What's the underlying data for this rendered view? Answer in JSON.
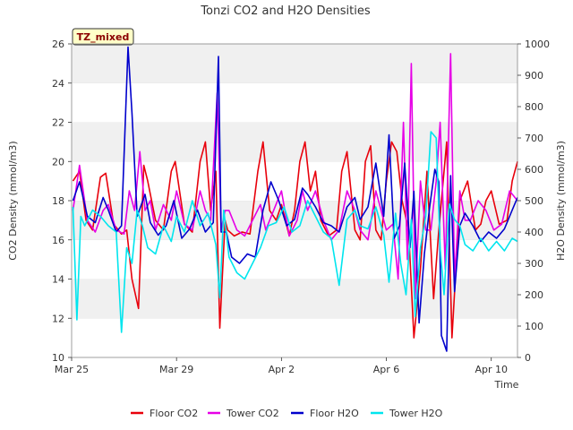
{
  "chart_data": {
    "type": "line",
    "title": "Tonzi CO2 and H2O Densities",
    "badge": "TZ_mixed",
    "xlabel": "Time",
    "ylabel_left": "CO2 Density (mmol/m3)",
    "ylabel_right": "H2O Density (mmol/m3)",
    "x_unit": "days since Mar 25",
    "xlim": [
      0,
      17
    ],
    "ylim_left": [
      10,
      26
    ],
    "ylim_right": [
      0,
      1000
    ],
    "yticks_left": [
      10,
      12,
      14,
      16,
      18,
      20,
      22,
      24,
      26
    ],
    "yticks_right": [
      0,
      100,
      200,
      300,
      400,
      500,
      600,
      700,
      800,
      900,
      1000
    ],
    "xticks": [
      {
        "x": 0,
        "label": "Mar 25"
      },
      {
        "x": 4,
        "label": "Mar 29"
      },
      {
        "x": 8,
        "label": "Apr 2"
      },
      {
        "x": 12,
        "label": "Apr 6"
      },
      {
        "x": 16,
        "label": "Apr 10"
      }
    ],
    "grid": "alternating horizontal bands",
    "legend_position": "bottom",
    "series": [
      {
        "name": "Floor CO2",
        "color": "#e8000b",
        "axis": "left",
        "x": [
          0.05,
          0.3,
          0.55,
          0.8,
          1.1,
          1.3,
          1.6,
          1.9,
          2.1,
          2.3,
          2.55,
          2.75,
          2.9,
          3.2,
          3.5,
          3.8,
          3.95,
          4.3,
          4.6,
          4.9,
          5.1,
          5.3,
          5.5,
          5.65,
          5.85,
          5.95,
          6.2,
          6.5,
          6.8,
          7.1,
          7.3,
          7.55,
          7.8,
          8.0,
          8.3,
          8.5,
          8.7,
          8.9,
          9.1,
          9.3,
          9.5,
          9.8,
          10.1,
          10.3,
          10.5,
          10.8,
          11.0,
          11.2,
          11.4,
          11.6,
          11.8,
          12.0,
          12.2,
          12.4,
          12.6,
          12.85,
          13.05,
          13.3,
          13.55,
          13.8,
          14.0,
          14.3,
          14.5,
          14.8,
          15.1,
          15.4,
          15.6,
          15.8,
          16.0,
          16.3,
          16.6,
          16.8,
          17.0
        ],
        "y": [
          19.0,
          19.5,
          17.0,
          16.5,
          19.2,
          19.4,
          16.8,
          16.3,
          16.5,
          14.0,
          12.5,
          19.8,
          19.0,
          17.0,
          16.5,
          19.5,
          20.0,
          16.8,
          16.4,
          20.0,
          21.0,
          17.5,
          19.5,
          11.5,
          17.0,
          16.5,
          16.2,
          16.4,
          16.3,
          19.5,
          21.0,
          17.5,
          17.0,
          17.8,
          16.2,
          17.5,
          20.0,
          21.0,
          18.5,
          19.5,
          17.0,
          16.2,
          16.5,
          19.5,
          20.5,
          16.5,
          16.0,
          20.0,
          20.8,
          16.5,
          16.0,
          19.0,
          21.0,
          20.5,
          18.0,
          16.5,
          11.0,
          14.5,
          19.5,
          13.0,
          16.5,
          21.0,
          11.0,
          18.0,
          19.0,
          16.5,
          16.8,
          18.0,
          18.5,
          16.8,
          17.0,
          19.0,
          20.0
        ]
      },
      {
        "name": "Tower CO2",
        "color": "#e600e6",
        "axis": "left",
        "x": [
          0.05,
          0.3,
          0.6,
          0.9,
          1.2,
          1.4,
          1.7,
          2.0,
          2.2,
          2.4,
          2.6,
          2.8,
          3.0,
          3.2,
          3.5,
          3.8,
          4.0,
          4.3,
          4.6,
          4.9,
          5.1,
          5.3,
          5.55,
          5.7,
          5.85,
          6.0,
          6.3,
          6.6,
          6.9,
          7.2,
          7.4,
          7.7,
          8.0,
          8.3,
          8.6,
          8.8,
          9.0,
          9.3,
          9.6,
          9.9,
          10.2,
          10.5,
          10.8,
          11.0,
          11.3,
          11.6,
          11.8,
          12.0,
          12.25,
          12.45,
          12.65,
          12.8,
          12.95,
          13.1,
          13.3,
          13.5,
          13.7,
          13.9,
          14.05,
          14.25,
          14.45,
          14.6,
          14.8,
          15.0,
          15.2,
          15.5,
          15.8,
          16.1,
          16.4,
          16.7,
          17.0
        ],
        "y": [
          17.5,
          19.8,
          17.0,
          16.4,
          17.5,
          17.8,
          16.5,
          16.3,
          18.5,
          17.5,
          20.5,
          17.5,
          18.0,
          16.5,
          17.8,
          17.0,
          18.5,
          16.8,
          16.5,
          18.5,
          17.5,
          17.0,
          23.5,
          16.5,
          17.5,
          17.5,
          16.5,
          16.2,
          17.0,
          17.8,
          16.5,
          17.5,
          18.5,
          16.2,
          17.0,
          18.5,
          17.5,
          18.5,
          17.0,
          16.0,
          16.5,
          18.5,
          17.5,
          16.5,
          16.0,
          18.5,
          17.5,
          16.5,
          16.8,
          14.0,
          22.0,
          15.0,
          25.0,
          13.0,
          19.0,
          16.5,
          16.5,
          19.0,
          22.0,
          14.5,
          25.5,
          14.0,
          18.5,
          17.0,
          17.0,
          18.0,
          17.5,
          16.5,
          16.8,
          18.5,
          18.0
        ]
      },
      {
        "name": "Floor H2O",
        "color": "#0000cc",
        "axis": "right",
        "x": [
          0.05,
          0.3,
          0.6,
          0.9,
          1.2,
          1.4,
          1.7,
          1.9,
          2.15,
          2.3,
          2.5,
          2.8,
          3.0,
          3.3,
          3.6,
          3.9,
          4.2,
          4.5,
          4.8,
          5.1,
          5.4,
          5.6,
          5.7,
          5.9,
          6.1,
          6.4,
          6.7,
          7.0,
          7.3,
          7.6,
          7.9,
          8.2,
          8.5,
          8.8,
          9.0,
          9.3,
          9.6,
          9.9,
          10.2,
          10.5,
          10.8,
          11.0,
          11.3,
          11.6,
          11.9,
          12.1,
          12.3,
          12.5,
          12.7,
          12.9,
          13.05,
          13.25,
          13.45,
          13.65,
          13.85,
          14.0,
          14.1,
          14.3,
          14.45,
          14.6,
          14.8,
          15.0,
          15.3,
          15.6,
          15.9,
          16.2,
          16.5,
          16.8,
          17.0
        ],
        "y": [
          500,
          560,
          450,
          430,
          510,
          470,
          400,
          420,
          990,
          780,
          450,
          520,
          430,
          390,
          420,
          500,
          380,
          410,
          470,
          400,
          430,
          960,
          400,
          400,
          320,
          300,
          330,
          320,
          470,
          560,
          500,
          420,
          440,
          540,
          520,
          480,
          430,
          420,
          400,
          480,
          510,
          440,
          480,
          620,
          450,
          710,
          380,
          420,
          620,
          350,
          530,
          110,
          330,
          480,
          600,
          560,
          70,
          20,
          580,
          210,
          420,
          460,
          420,
          370,
          400,
          380,
          410,
          470,
          510
        ]
      },
      {
        "name": "Tower H2O",
        "color": "#00e5ee",
        "axis": "right",
        "x": [
          0.05,
          0.2,
          0.35,
          0.5,
          0.8,
          1.1,
          1.4,
          1.7,
          1.9,
          2.1,
          2.3,
          2.5,
          2.7,
          2.9,
          3.2,
          3.5,
          3.8,
          4.0,
          4.3,
          4.6,
          4.9,
          5.2,
          5.5,
          5.65,
          5.8,
          6.0,
          6.3,
          6.6,
          6.9,
          7.2,
          7.5,
          7.8,
          8.1,
          8.4,
          8.7,
          9.0,
          9.3,
          9.6,
          9.9,
          10.2,
          10.5,
          10.8,
          11.0,
          11.3,
          11.6,
          11.9,
          12.1,
          12.35,
          12.55,
          12.75,
          12.95,
          13.1,
          13.3,
          13.5,
          13.7,
          13.9,
          14.05,
          14.2,
          14.4,
          14.6,
          14.8,
          15.0,
          15.3,
          15.6,
          15.9,
          16.2,
          16.5,
          16.8,
          17.0
        ],
        "y": [
          480,
          120,
          450,
          420,
          470,
          450,
          420,
          400,
          80,
          350,
          300,
          470,
          420,
          350,
          330,
          420,
          370,
          450,
          400,
          500,
          420,
          460,
          360,
          190,
          470,
          320,
          270,
          250,
          300,
          350,
          420,
          430,
          480,
          400,
          420,
          500,
          450,
          400,
          380,
          230,
          440,
          470,
          420,
          410,
          480,
          390,
          240,
          460,
          300,
          200,
          440,
          130,
          350,
          450,
          720,
          700,
          350,
          200,
          490,
          440,
          420,
          360,
          340,
          380,
          340,
          370,
          340,
          380,
          370
        ]
      }
    ]
  }
}
